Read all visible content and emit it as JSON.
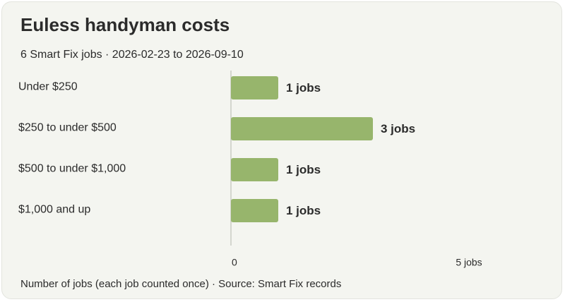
{
  "chart_data": {
    "type": "bar",
    "orientation": "horizontal",
    "title": "Euless handyman costs",
    "subtitle": "6 Smart Fix jobs · 2026-02-23 to 2026-09-10",
    "categories": [
      "Under $250",
      "$250 to under $500",
      "$500 to under $1,000",
      "$1,000 and up"
    ],
    "values": [
      1,
      3,
      1,
      1
    ],
    "data_labels": [
      "1 jobs",
      "3 jobs",
      "1 jobs",
      "1 jobs"
    ],
    "xlim": [
      0,
      5
    ],
    "x_ticks": [
      {
        "value": 0,
        "label": "0"
      },
      {
        "value": 5,
        "label": "5 jobs"
      }
    ],
    "grid": false,
    "bar_color": "#97b56c",
    "axis_color": "#c9cbc4",
    "footnote": "Number of jobs (each job counted once) · Source: Smart Fix records"
  }
}
